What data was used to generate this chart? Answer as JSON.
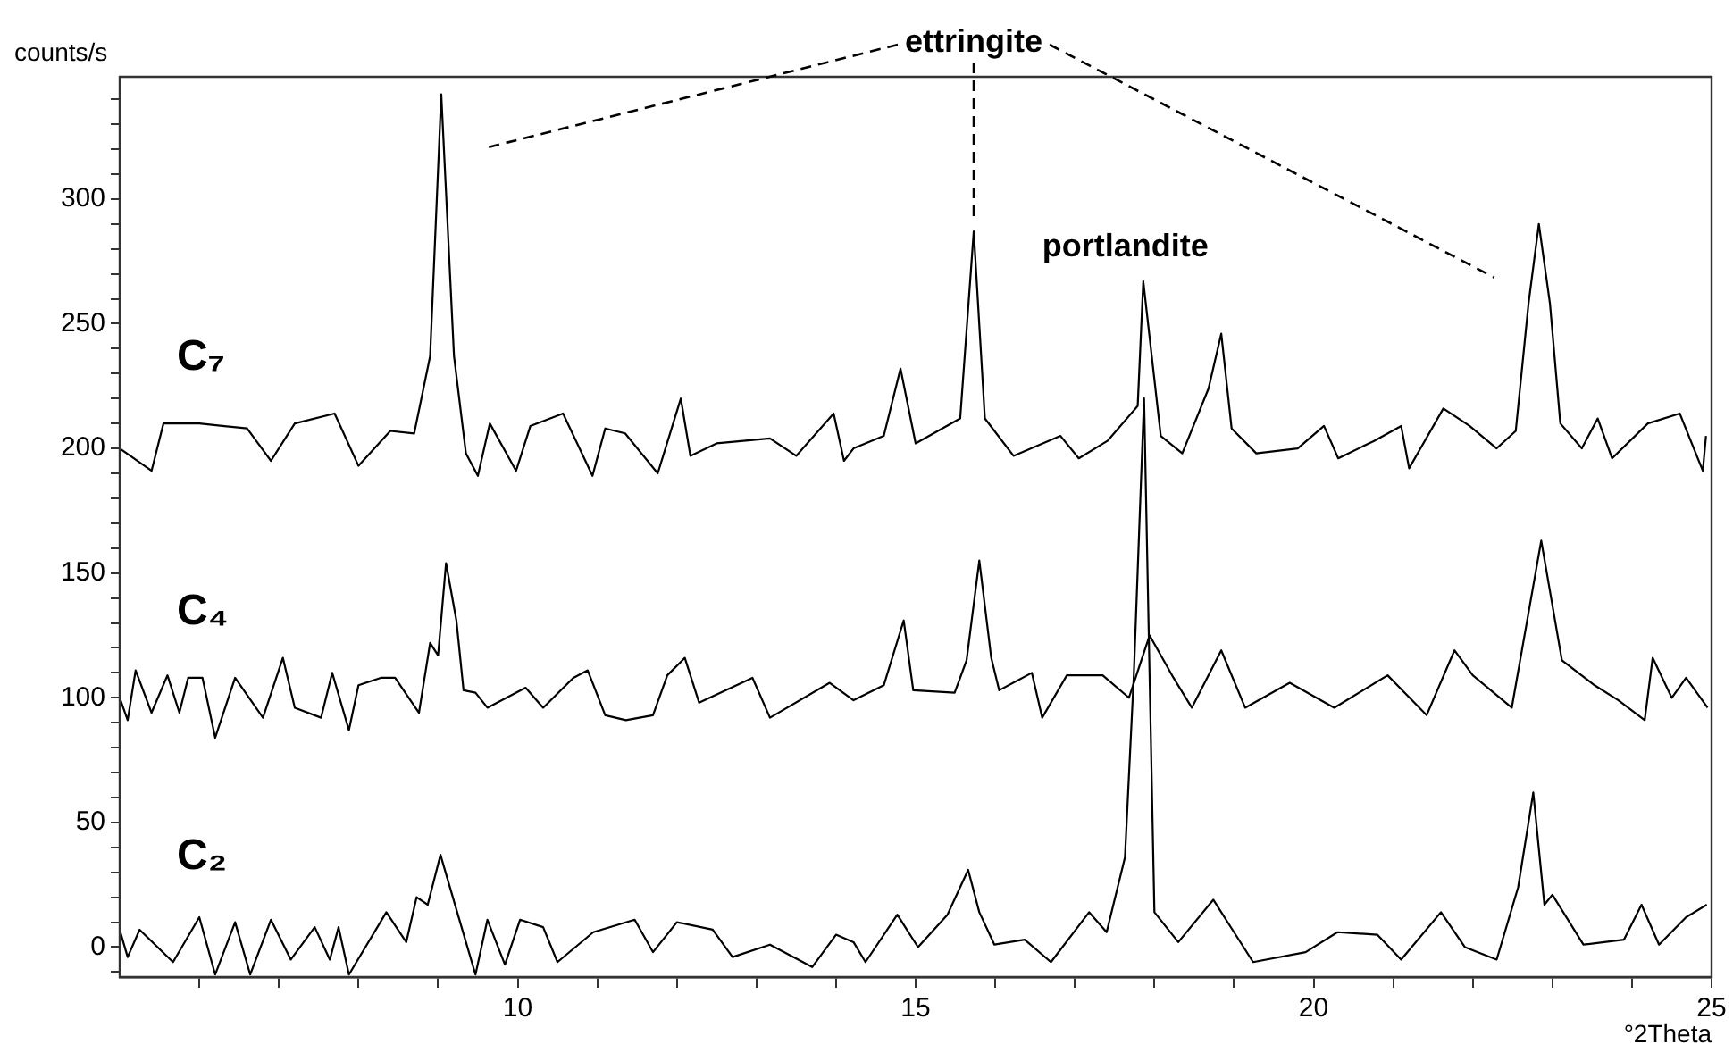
{
  "chart_data": {
    "type": "line",
    "xlabel": "°2Theta",
    "ylabel": "counts/s",
    "xlim": [
      5,
      25
    ],
    "ylim": [
      -12,
      349
    ],
    "xticks": [
      {
        "value": 6,
        "label": null
      },
      {
        "value": 7,
        "label": null
      },
      {
        "value": 8,
        "label": null
      },
      {
        "value": 9,
        "label": null
      },
      10,
      {
        "value": 11,
        "label": null
      },
      {
        "value": 12,
        "label": null
      },
      {
        "value": 13,
        "label": null
      },
      {
        "value": 14,
        "label": null
      },
      15,
      {
        "value": 16,
        "label": null
      },
      {
        "value": 17,
        "label": null
      },
      {
        "value": 18,
        "label": null
      },
      {
        "value": 19,
        "label": null
      },
      20,
      {
        "value": 21,
        "label": null
      },
      {
        "value": 22,
        "label": null
      },
      {
        "value": 23,
        "label": null
      },
      {
        "value": 24,
        "label": null
      },
      25
    ],
    "yticks": [
      {
        "value": -10,
        "label": null
      },
      0,
      {
        "value": 10,
        "label": null
      },
      {
        "value": 20,
        "label": null
      },
      {
        "value": 30,
        "label": null
      },
      {
        "value": 40,
        "label": null
      },
      50,
      {
        "value": 60,
        "label": null
      },
      {
        "value": 70,
        "label": null
      },
      {
        "value": 80,
        "label": null
      },
      {
        "value": 90,
        "label": null
      },
      100,
      {
        "value": 110,
        "label": null
      },
      {
        "value": 120,
        "label": null
      },
      {
        "value": 130,
        "label": null
      },
      {
        "value": 140,
        "label": null
      },
      150,
      {
        "value": 160,
        "label": null
      },
      {
        "value": 170,
        "label": null
      },
      {
        "value": 180,
        "label": null
      },
      {
        "value": 190,
        "label": null
      },
      200,
      {
        "value": 210,
        "label": null
      },
      {
        "value": 220,
        "label": null
      },
      {
        "value": 230,
        "label": null
      },
      {
        "value": 240,
        "label": null
      },
      250,
      {
        "value": 260,
        "label": null
      },
      {
        "value": 270,
        "label": null
      },
      {
        "value": 280,
        "label": null
      },
      {
        "value": 290,
        "label": null
      },
      300,
      {
        "value": 310,
        "label": null
      },
      {
        "value": 320,
        "label": null
      },
      {
        "value": 330,
        "label": null
      },
      {
        "value": 340,
        "label": null
      }
    ],
    "grid": false,
    "legend": false,
    "marker": "none",
    "line_style": "solid",
    "annotations": [
      {
        "text": "ettringite",
        "x": 15.73,
        "y": 287
      },
      {
        "text": "portlandite",
        "x": 17.86,
        "y": 267
      }
    ],
    "series": [
      {
        "name": "C₂",
        "color": "#000000",
        "x": [
          5.0,
          5.1,
          5.25,
          5.67,
          6.0,
          6.2,
          6.45,
          6.64,
          6.9,
          7.15,
          7.45,
          7.64,
          7.75,
          7.88,
          8.35,
          8.6,
          8.73,
          8.87,
          9.03,
          9.24,
          9.47,
          9.62,
          9.84,
          10.03,
          10.32,
          10.5,
          10.95,
          11.47,
          11.7,
          12.0,
          12.45,
          12.7,
          13.17,
          13.7,
          14.0,
          14.22,
          14.37,
          14.77,
          15.03,
          15.4,
          15.66,
          15.8,
          15.99,
          16.37,
          16.7,
          17.18,
          17.4,
          17.63,
          17.74,
          17.87,
          17.94,
          18.0,
          18.3,
          18.74,
          19.0,
          19.24,
          19.9,
          20.3,
          20.8,
          21.1,
          21.6,
          21.9,
          22.3,
          22.57,
          22.76,
          22.9,
          23.0,
          23.39,
          23.9,
          24.12,
          24.34,
          24.68,
          24.94
        ],
        "values": [
          7,
          -4,
          7,
          -6,
          12,
          -11,
          10,
          -11,
          11,
          -5,
          8,
          -5,
          8,
          -11,
          14,
          2,
          20,
          17,
          37,
          14,
          -11,
          11,
          -7,
          11,
          8,
          -6,
          6,
          11,
          -2,
          10,
          7,
          -4,
          1,
          -8,
          5,
          2,
          -6,
          13,
          0,
          13,
          31,
          14,
          1,
          3,
          -6,
          14,
          6,
          36,
          108,
          220,
          108,
          14,
          2,
          19,
          6,
          -6,
          -2,
          6,
          5,
          -5,
          14,
          0,
          -5,
          24,
          62,
          17,
          21,
          1,
          3,
          17,
          1,
          12,
          17
        ]
      },
      {
        "name": "C₄",
        "color": "#000000",
        "x": [
          5.0,
          5.1,
          5.2,
          5.4,
          5.6,
          5.75,
          5.86,
          6.04,
          6.2,
          6.45,
          6.8,
          7.05,
          7.2,
          7.53,
          7.67,
          7.88,
          8.0,
          8.28,
          8.46,
          8.76,
          8.9,
          9.0,
          9.1,
          9.23,
          9.32,
          9.47,
          9.62,
          10.1,
          10.32,
          10.7,
          10.88,
          11.1,
          11.36,
          11.7,
          11.88,
          12.1,
          12.28,
          12.95,
          13.17,
          13.92,
          14.22,
          14.6,
          14.85,
          14.97,
          15.49,
          15.64,
          15.8,
          15.95,
          16.05,
          16.46,
          16.59,
          16.9,
          17.35,
          17.68,
          17.94,
          18.24,
          18.47,
          18.84,
          19.14,
          19.7,
          20.26,
          20.93,
          21.42,
          21.77,
          22.0,
          22.49,
          22.86,
          23.12,
          23.53,
          23.83,
          24.16,
          24.26,
          24.5,
          24.68,
          24.95
        ],
        "values": [
          100,
          91,
          111,
          94,
          109,
          94,
          108,
          108,
          84,
          108,
          92,
          116,
          96,
          92,
          110,
          87,
          105,
          108,
          108,
          94,
          122,
          117,
          154,
          131,
          103,
          102,
          96,
          104,
          96,
          108,
          111,
          93,
          91,
          93,
          109,
          116,
          98,
          108,
          92,
          106,
          99,
          105,
          131,
          103,
          102,
          115,
          155,
          116,
          103,
          110,
          92,
          109,
          109,
          100,
          125,
          108,
          96,
          119,
          96,
          106,
          96,
          109,
          93,
          119,
          109,
          96,
          163,
          115,
          105,
          99,
          91,
          116,
          100,
          108,
          96
        ]
      },
      {
        "name": "C₇",
        "color": "#000000",
        "x": [
          5.0,
          5.4,
          5.55,
          6.0,
          6.6,
          6.9,
          7.2,
          7.7,
          8.0,
          8.4,
          8.7,
          8.9,
          9.04,
          9.2,
          9.35,
          9.5,
          9.65,
          9.98,
          10.16,
          10.57,
          10.94,
          11.1,
          11.35,
          11.76,
          12.05,
          12.17,
          12.5,
          13.17,
          13.5,
          13.97,
          14.1,
          14.22,
          14.6,
          14.81,
          15.0,
          15.56,
          15.73,
          15.87,
          16.23,
          16.82,
          17.05,
          17.41,
          17.79,
          17.86,
          18.08,
          18.35,
          18.68,
          18.84,
          18.97,
          19.28,
          19.8,
          20.13,
          20.31,
          20.76,
          21.1,
          21.2,
          21.63,
          21.96,
          22.3,
          22.54,
          22.7,
          22.83,
          22.97,
          23.1,
          23.37,
          23.57,
          23.75,
          24.2,
          24.6,
          24.89,
          24.93
        ],
        "values": [
          200,
          191,
          210,
          210,
          208,
          195,
          210,
          214,
          193,
          207,
          206,
          237,
          342,
          237,
          198,
          189,
          210,
          191,
          209,
          214,
          189,
          208,
          206,
          190,
          220,
          197,
          202,
          204,
          197,
          214,
          195,
          200,
          205,
          232,
          202,
          212,
          287,
          212,
          197,
          205,
          196,
          203,
          217,
          267,
          205,
          198,
          224,
          246,
          208,
          198,
          200,
          209,
          196,
          203,
          209,
          192,
          216,
          209,
          200,
          207,
          258,
          290,
          258,
          210,
          200,
          212,
          196,
          210,
          214,
          191,
          205
        ]
      }
    ]
  }
}
